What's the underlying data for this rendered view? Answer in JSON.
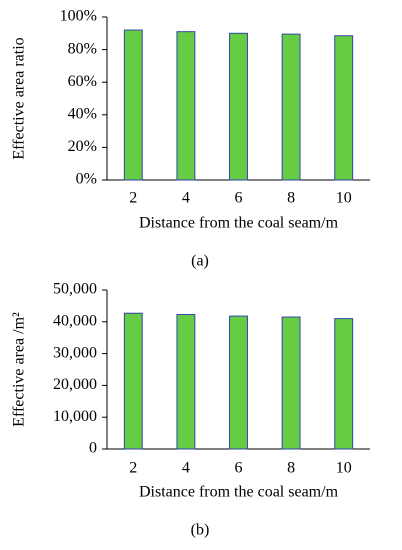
{
  "chart_data": [
    {
      "type": "bar",
      "caption": "(a)",
      "x_label": "Distance from the coal seam/m",
      "y_label": "Effective area ratio",
      "categories": [
        "2",
        "4",
        "6",
        "8",
        "10"
      ],
      "values": [
        92,
        91,
        90,
        89.5,
        88.5
      ],
      "color": "#66cc44",
      "edge_color": "#3344aa",
      "ylim": [
        0,
        100
      ],
      "yticks": [
        {
          "value": 0,
          "label": "0%"
        },
        {
          "value": 20,
          "label": "20%"
        },
        {
          "value": 40,
          "label": "40%"
        },
        {
          "value": 60,
          "label": "60%"
        },
        {
          "value": 80,
          "label": "80%"
        },
        {
          "value": 100,
          "label": "100%"
        }
      ]
    },
    {
      "type": "bar",
      "caption": "(b)",
      "x_label": "Distance from the coal seam/m",
      "y_label": "Effective area /m²",
      "categories": [
        "2",
        "4",
        "6",
        "8",
        "10"
      ],
      "values": [
        42700,
        42300,
        41800,
        41500,
        41000
      ],
      "color": "#66cc44",
      "edge_color": "#3344aa",
      "ylim": [
        0,
        50000
      ],
      "yticks": [
        0,
        {
          "value": 10000,
          "label": "10,000"
        },
        {
          "value": 20000,
          "label": "20,000"
        },
        {
          "value": 30000,
          "label": "30,000"
        },
        {
          "value": 40000,
          "label": "40,000"
        },
        {
          "value": 50000,
          "label": "50,000"
        }
      ]
    }
  ]
}
